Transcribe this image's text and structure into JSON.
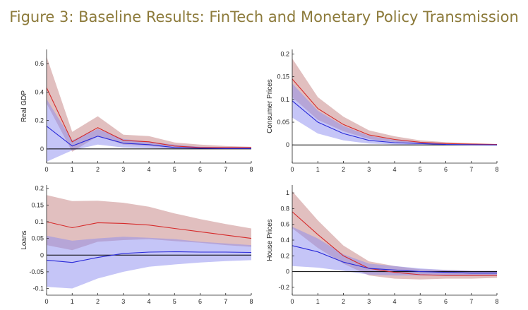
{
  "title": "Figure 3: Baseline Results: FinTech and Monetary Policy Transmission",
  "colors": {
    "title": "#8c7a3a",
    "high_line": "#d62a2a",
    "high_band": "#c98a8a",
    "low_line": "#2a2ad8",
    "low_band": "#8c8cf0"
  },
  "chart_data": [
    {
      "type": "line",
      "ylabel": "Real GDP",
      "x": [
        0,
        1,
        2,
        3,
        4,
        5,
        6,
        7,
        8
      ],
      "xlim": [
        0,
        8
      ],
      "ylim": [
        -0.1,
        0.7
      ],
      "yticks": [
        0,
        0.2,
        0.4,
        0.6
      ],
      "ytick_labels": [
        "0",
        "0.2",
        "0.4",
        "0.6"
      ],
      "series": [
        {
          "values": [
            0.43,
            0.05,
            0.15,
            0.06,
            0.05,
            0.02,
            0.01,
            0.01,
            0.01
          ],
          "lower": [
            0.32,
            -0.02,
            0.09,
            0.03,
            0.02,
            0.005,
            0.003,
            0.002,
            0.002
          ],
          "upper": [
            0.65,
            0.12,
            0.23,
            0.1,
            0.09,
            0.045,
            0.03,
            0.02,
            0.015
          ]
        },
        {
          "values": [
            0.16,
            0.02,
            0.09,
            0.04,
            0.03,
            0.01,
            0.005,
            0.003,
            0.003
          ],
          "lower": [
            -0.09,
            -0.01,
            0.03,
            0.01,
            0.005,
            0.0,
            0.0,
            0.0,
            0.0
          ],
          "upper": [
            0.35,
            0.06,
            0.14,
            0.07,
            0.05,
            0.03,
            0.015,
            0.01,
            0.008
          ]
        }
      ]
    },
    {
      "type": "line",
      "ylabel": "Consumer Prices",
      "x": [
        0,
        1,
        2,
        3,
        4,
        5,
        6,
        7,
        8
      ],
      "xlim": [
        0,
        8
      ],
      "ylim": [
        -0.04,
        0.21
      ],
      "yticks": [
        0,
        0.05,
        0.1,
        0.15,
        0.2
      ],
      "ytick_labels": [
        "0",
        "0.05",
        "0.1",
        "0.15",
        "0.2"
      ],
      "series": [
        {
          "values": [
            0.145,
            0.08,
            0.045,
            0.022,
            0.012,
            0.006,
            0.003,
            0.002,
            0.001
          ],
          "lower": [
            0.105,
            0.055,
            0.03,
            0.013,
            0.006,
            0.003,
            0.001,
            0.0005,
            0.0
          ],
          "upper": [
            0.19,
            0.105,
            0.062,
            0.032,
            0.019,
            0.01,
            0.006,
            0.004,
            0.002
          ]
        },
        {
          "values": [
            0.097,
            0.05,
            0.025,
            0.01,
            0.005,
            0.003,
            0.001,
            0.0005,
            0.0
          ],
          "lower": [
            0.06,
            0.025,
            0.01,
            0.003,
            0.001,
            0.0,
            0.0,
            0.0,
            -0.001
          ],
          "upper": [
            0.135,
            0.075,
            0.042,
            0.02,
            0.011,
            0.006,
            0.003,
            0.002,
            0.001
          ]
        }
      ]
    },
    {
      "type": "line",
      "ylabel": "Loans",
      "x": [
        0,
        1,
        2,
        3,
        4,
        5,
        6,
        7,
        8
      ],
      "xlim": [
        0,
        8
      ],
      "ylim": [
        -0.12,
        0.21
      ],
      "yticks": [
        -0.1,
        -0.05,
        0,
        0.05,
        0.1,
        0.15,
        0.2
      ],
      "ytick_labels": [
        "-0.1",
        "-0.05",
        "0",
        "0.05",
        "0.1",
        "0.15",
        "0.2"
      ],
      "series": [
        {
          "values": [
            0.1,
            0.082,
            0.097,
            0.095,
            0.09,
            0.08,
            0.07,
            0.06,
            0.05
          ],
          "lower": [
            0.03,
            0.015,
            0.04,
            0.045,
            0.048,
            0.042,
            0.037,
            0.03,
            0.025
          ],
          "upper": [
            0.18,
            0.162,
            0.163,
            0.157,
            0.145,
            0.125,
            0.108,
            0.093,
            0.08
          ]
        },
        {
          "values": [
            -0.015,
            -0.022,
            -0.007,
            0.005,
            0.009,
            0.01,
            0.009,
            0.009,
            0.008
          ],
          "lower": [
            -0.095,
            -0.1,
            -0.07,
            -0.05,
            -0.035,
            -0.028,
            -0.022,
            -0.018,
            -0.015
          ],
          "upper": [
            0.058,
            0.043,
            0.05,
            0.055,
            0.052,
            0.048,
            0.04,
            0.035,
            0.03
          ]
        }
      ]
    },
    {
      "type": "line",
      "ylabel": "House Prices",
      "x": [
        0,
        1,
        2,
        3,
        4,
        5,
        6,
        7,
        8
      ],
      "xlim": [
        0,
        8
      ],
      "ylim": [
        -0.3,
        1.1
      ],
      "yticks": [
        -0.2,
        0,
        0.2,
        0.4,
        0.6,
        0.8,
        1
      ],
      "ytick_labels": [
        "-0.2",
        "0",
        "0.2",
        "0.4",
        "0.6",
        "0.8",
        "1"
      ],
      "series": [
        {
          "values": [
            0.76,
            0.47,
            0.2,
            0.04,
            -0.01,
            -0.04,
            -0.05,
            -0.05,
            -0.05
          ],
          "lower": [
            0.55,
            0.3,
            0.1,
            -0.05,
            -0.09,
            -0.1,
            -0.09,
            -0.09,
            -0.08
          ],
          "upper": [
            1.02,
            0.65,
            0.33,
            0.13,
            0.07,
            0.03,
            0.02,
            0.01,
            0.01
          ]
        },
        {
          "values": [
            0.33,
            0.25,
            0.12,
            0.04,
            0.02,
            0.0,
            -0.01,
            -0.02,
            -0.02
          ],
          "lower": [
            0.07,
            0.05,
            0.01,
            -0.04,
            -0.05,
            -0.05,
            -0.05,
            -0.05,
            -0.05
          ],
          "upper": [
            0.57,
            0.42,
            0.22,
            0.1,
            0.07,
            0.04,
            0.02,
            0.01,
            0.01
          ]
        }
      ]
    }
  ]
}
